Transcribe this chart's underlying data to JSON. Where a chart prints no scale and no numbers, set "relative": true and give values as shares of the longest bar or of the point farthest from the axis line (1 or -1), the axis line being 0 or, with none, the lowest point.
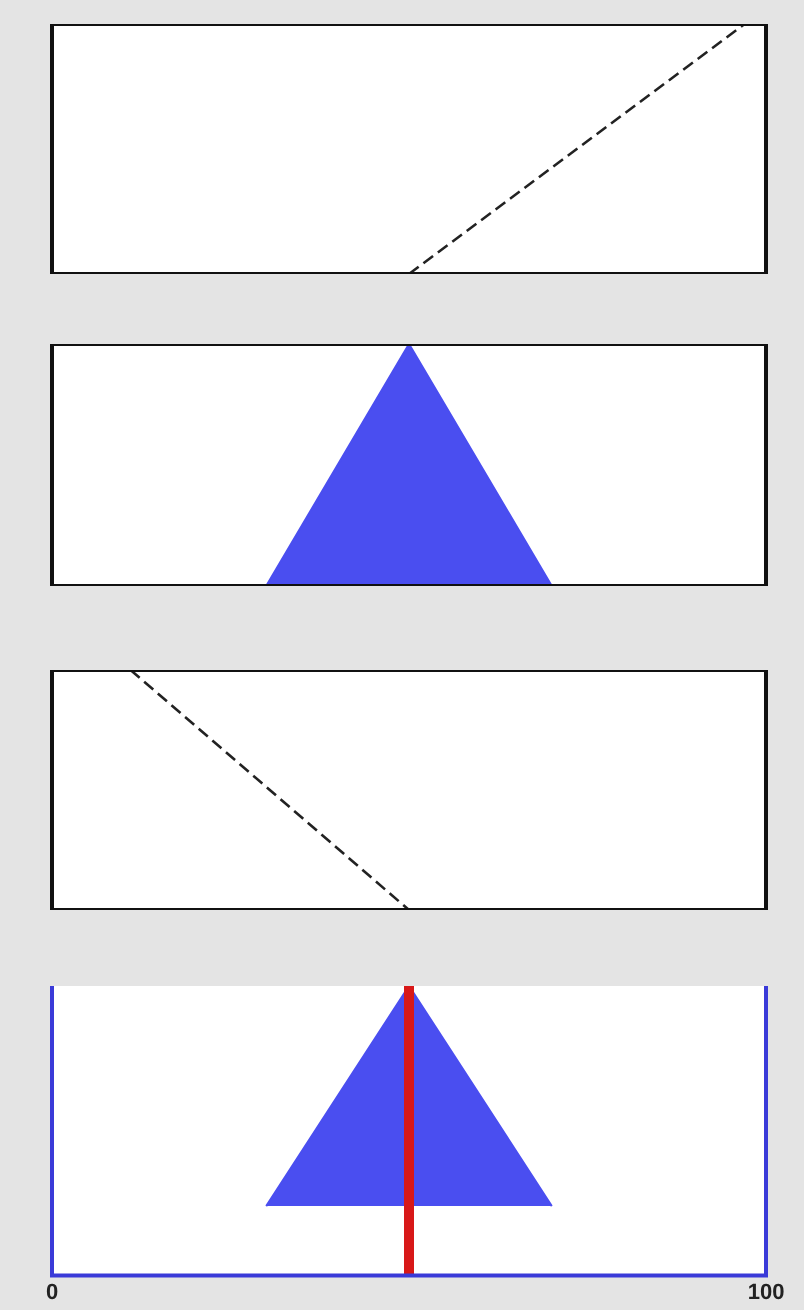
{
  "chart_data": [
    {
      "type": "line",
      "relative": true,
      "x": [
        50,
        97,
        100
      ],
      "xlim": [
        0,
        100
      ],
      "tick_labels": false,
      "line_style": "dashed",
      "marker": "none",
      "series": [
        {
          "color": "#222222",
          "values": [
            0,
            1,
            1
          ]
        }
      ]
    },
    {
      "type": "area",
      "relative": true,
      "x": [
        30,
        50,
        70
      ],
      "xlim": [
        0,
        100
      ],
      "tick_labels": false,
      "series": [
        {
          "color": "#4a4ef0",
          "values": [
            0,
            1,
            0
          ]
        }
      ]
    },
    {
      "type": "line",
      "relative": true,
      "x": [
        11,
        50
      ],
      "xlim": [
        0,
        100
      ],
      "tick_labels": false,
      "line_style": "dashed",
      "marker": "none",
      "series": [
        {
          "color": "#222222",
          "values": [
            1,
            0
          ]
        }
      ]
    },
    {
      "type": "area",
      "relative": true,
      "x": [
        30,
        50,
        70
      ],
      "xlim": [
        0,
        100
      ],
      "xticks": [
        0,
        100
      ],
      "tick_labels": "x",
      "series": [
        {
          "color": "#4a4ef0",
          "values": [
            0.24,
            1,
            0.24
          ]
        }
      ],
      "ref_lines": [
        {
          "axis": "x",
          "value": 50,
          "color": "#d81818"
        }
      ]
    }
  ]
}
